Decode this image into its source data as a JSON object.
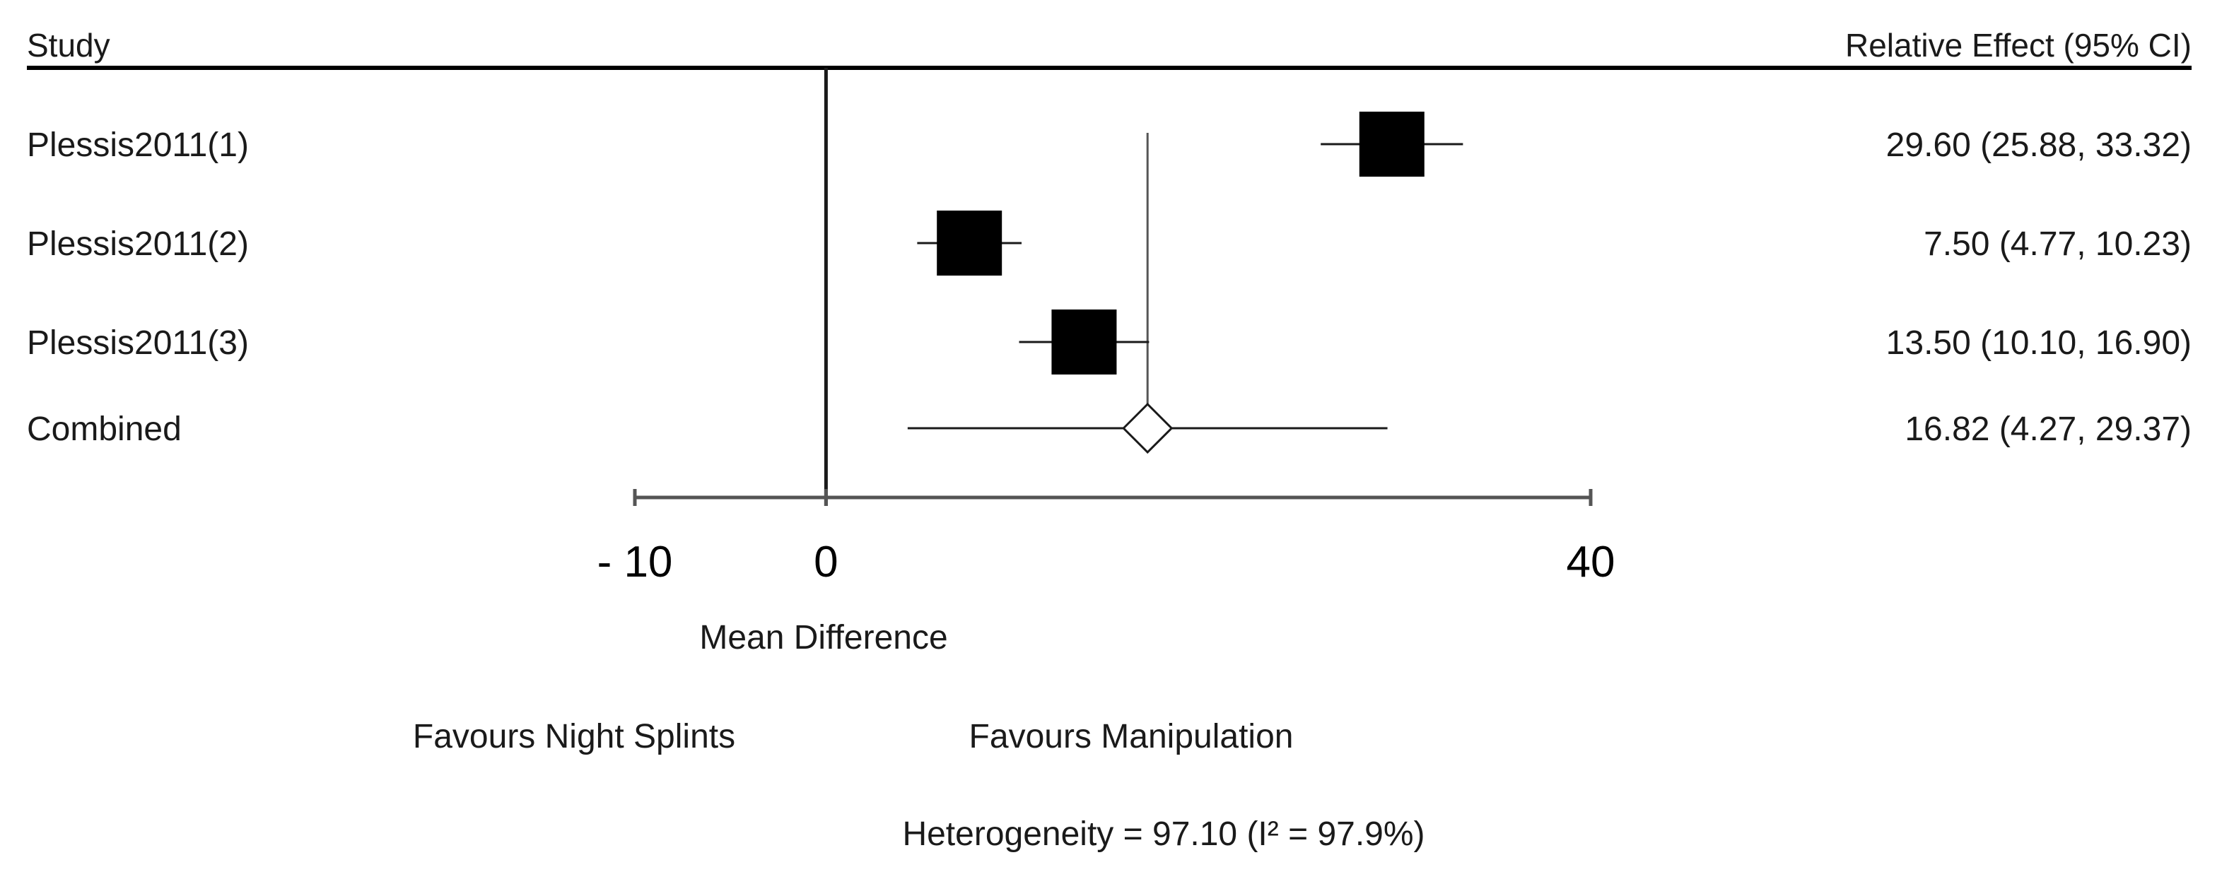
{
  "header": {
    "study_label": "Study",
    "effect_label": "Relative Effect (95% CI)"
  },
  "chart_data": {
    "type": "forest",
    "xlabel": "Mean Difference",
    "xlim": [
      -10,
      40
    ],
    "ticks": [
      {
        "value": -10,
        "label": "- 10"
      },
      {
        "value": 0,
        "label": "0"
      },
      {
        "value": 40,
        "label": "40"
      }
    ],
    "studies": [
      {
        "name": "Plessis2011(1)",
        "estimate": 29.6,
        "lower": 25.88,
        "upper": 33.32,
        "label": "29.60 (25.88, 33.32)"
      },
      {
        "name": "Plessis2011(2)",
        "estimate": 7.5,
        "lower": 4.77,
        "upper": 10.23,
        "label": "7.50 (4.77, 10.23)"
      },
      {
        "name": "Plessis2011(3)",
        "estimate": 13.5,
        "lower": 10.1,
        "upper": 16.9,
        "label": "13.50 (10.10, 16.90)"
      }
    ],
    "combined": {
      "name": "Combined",
      "estimate": 16.82,
      "lower": 4.27,
      "upper": 29.37,
      "label": "16.82 (4.27, 29.37)"
    },
    "favours_left": "Favours Night Splints",
    "favours_right": "Favours Manipulation",
    "heterogeneity": "Heterogeneity = 97.10 (I² = 97.9%)"
  }
}
